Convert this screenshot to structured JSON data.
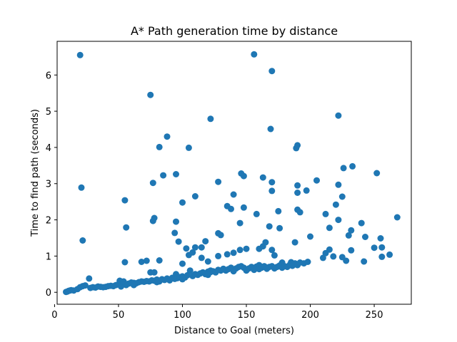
{
  "chart_data": {
    "type": "scatter",
    "title": "A* Path generation time by distance",
    "xlabel": "Distance to Goal (meters)",
    "ylabel": "Time to find path (seconds)",
    "xlim": [
      2,
      279
    ],
    "ylim": [
      -0.33,
      6.93
    ],
    "xticks": [
      0,
      50,
      100,
      150,
      200,
      250
    ],
    "yticks": [
      0,
      1,
      2,
      3,
      4,
      5,
      6
    ],
    "grid": false,
    "marker_color": "#1f77b4",
    "points": [
      [
        20,
        6.55
      ],
      [
        156,
        6.57
      ],
      [
        170,
        6.11
      ],
      [
        75,
        5.45
      ],
      [
        122,
        4.79
      ],
      [
        222,
        4.88
      ],
      [
        88,
        4.3
      ],
      [
        82,
        4.01
      ],
      [
        105,
        3.99
      ],
      [
        169,
        4.51
      ],
      [
        189,
        3.98
      ],
      [
        190,
        4.06
      ],
      [
        21,
        2.89
      ],
      [
        22,
        1.43
      ],
      [
        55,
        2.54
      ],
      [
        56,
        1.79
      ],
      [
        77,
        3.02
      ],
      [
        85,
        3.23
      ],
      [
        95,
        3.26
      ],
      [
        100,
        2.48
      ],
      [
        110,
        2.65
      ],
      [
        128,
        3.05
      ],
      [
        140,
        2.7
      ],
      [
        146,
        3.28
      ],
      [
        148,
        3.21
      ],
      [
        163,
        3.17
      ],
      [
        170,
        3.04
      ],
      [
        170,
        2.8
      ],
      [
        190,
        2.95
      ],
      [
        190,
        2.75
      ],
      [
        197,
        2.81
      ],
      [
        205,
        3.09
      ],
      [
        222,
        2.97
      ],
      [
        226,
        3.43
      ],
      [
        233,
        3.48
      ],
      [
        252,
        3.29
      ],
      [
        77,
        1.97
      ],
      [
        78,
        2.05
      ],
      [
        95,
        1.95
      ],
      [
        94,
        1.64
      ],
      [
        97,
        1.4
      ],
      [
        110,
        1.24
      ],
      [
        115,
        1.24
      ],
      [
        118,
        1.41
      ],
      [
        128,
        1.63
      ],
      [
        130,
        1.58
      ],
      [
        135,
        2.38
      ],
      [
        138,
        2.3
      ],
      [
        145,
        1.91
      ],
      [
        148,
        2.34
      ],
      [
        158,
        2.16
      ],
      [
        165,
        1.38
      ],
      [
        168,
        1.82
      ],
      [
        175,
        2.24
      ],
      [
        176,
        1.77
      ],
      [
        190,
        2.28
      ],
      [
        192,
        2.21
      ],
      [
        200,
        1.54
      ],
      [
        212,
        2.16
      ],
      [
        215,
        1.78
      ],
      [
        220,
        2.42
      ],
      [
        222,
        2.0
      ],
      [
        225,
        2.64
      ],
      [
        230,
        1.57
      ],
      [
        232,
        1.71
      ],
      [
        240,
        1.91
      ],
      [
        243,
        1.53
      ],
      [
        255,
        1.49
      ],
      [
        268,
        2.07
      ],
      [
        55,
        0.83
      ],
      [
        68,
        0.84
      ],
      [
        72,
        0.87
      ],
      [
        82,
        0.88
      ],
      [
        100,
        0.79
      ],
      [
        103,
        1.21
      ],
      [
        105,
        1.03
      ],
      [
        108,
        1.1
      ],
      [
        115,
        0.95
      ],
      [
        120,
        0.85
      ],
      [
        128,
        1.0
      ],
      [
        135,
        1.05
      ],
      [
        140,
        1.09
      ],
      [
        145,
        1.17
      ],
      [
        150,
        1.2
      ],
      [
        160,
        1.2
      ],
      [
        163,
        1.27
      ],
      [
        170,
        1.17
      ],
      [
        172,
        1.02
      ],
      [
        178,
        0.82
      ],
      [
        185,
        0.83
      ],
      [
        188,
        1.38
      ],
      [
        210,
        0.95
      ],
      [
        212,
        1.08
      ],
      [
        215,
        1.18
      ],
      [
        218,
        0.99
      ],
      [
        225,
        0.97
      ],
      [
        228,
        0.87
      ],
      [
        232,
        1.16
      ],
      [
        242,
        0.85
      ],
      [
        250,
        1.23
      ],
      [
        256,
        1.24
      ],
      [
        256,
        0.98
      ],
      [
        262,
        1.04
      ],
      [
        75,
        0.55
      ],
      [
        78,
        0.55
      ],
      [
        95,
        0.5
      ],
      [
        122,
        0.56
      ],
      [
        9,
        0.01
      ],
      [
        10,
        0.02
      ],
      [
        11,
        0.04
      ],
      [
        12,
        0.05
      ],
      [
        13,
        0.06
      ],
      [
        15,
        0.05
      ],
      [
        18,
        0.09
      ],
      [
        20,
        0.14
      ],
      [
        22,
        0.17
      ],
      [
        24,
        0.19
      ],
      [
        27,
        0.38
      ],
      [
        28,
        0.12
      ],
      [
        30,
        0.14
      ],
      [
        32,
        0.13
      ],
      [
        34,
        0.16
      ],
      [
        36,
        0.15
      ],
      [
        38,
        0.14
      ],
      [
        40,
        0.15
      ],
      [
        42,
        0.17
      ],
      [
        44,
        0.18
      ],
      [
        46,
        0.17
      ],
      [
        48,
        0.2
      ],
      [
        50,
        0.22
      ],
      [
        51,
        0.32
      ],
      [
        52,
        0.16
      ],
      [
        54,
        0.3
      ],
      [
        56,
        0.2
      ],
      [
        58,
        0.24
      ],
      [
        60,
        0.27
      ],
      [
        62,
        0.26
      ],
      [
        64,
        0.25
      ],
      [
        66,
        0.28
      ],
      [
        68,
        0.3
      ],
      [
        70,
        0.29
      ],
      [
        72,
        0.31
      ],
      [
        74,
        0.3
      ],
      [
        76,
        0.33
      ],
      [
        78,
        0.32
      ],
      [
        80,
        0.35
      ],
      [
        82,
        0.3
      ],
      [
        84,
        0.36
      ],
      [
        86,
        0.34
      ],
      [
        88,
        0.38
      ],
      [
        90,
        0.33
      ],
      [
        92,
        0.4
      ],
      [
        94,
        0.37
      ],
      [
        96,
        0.39
      ],
      [
        98,
        0.42
      ],
      [
        100,
        0.44
      ],
      [
        102,
        0.41
      ],
      [
        104,
        0.47
      ],
      [
        106,
        0.6
      ],
      [
        108,
        0.45
      ],
      [
        110,
        0.5
      ],
      [
        112,
        0.48
      ],
      [
        114,
        0.52
      ],
      [
        116,
        0.55
      ],
      [
        118,
        0.5
      ],
      [
        120,
        0.57
      ],
      [
        122,
        0.6
      ],
      [
        124,
        0.58
      ],
      [
        126,
        0.55
      ],
      [
        128,
        0.62
      ],
      [
        130,
        0.6
      ],
      [
        132,
        0.65
      ],
      [
        134,
        0.6
      ],
      [
        136,
        0.64
      ],
      [
        138,
        0.68
      ],
      [
        140,
        0.62
      ],
      [
        142,
        0.66
      ],
      [
        144,
        0.7
      ],
      [
        146,
        0.72
      ],
      [
        148,
        0.68
      ],
      [
        150,
        0.6
      ],
      [
        152,
        0.66
      ],
      [
        154,
        0.7
      ],
      [
        156,
        0.62
      ],
      [
        158,
        0.71
      ],
      [
        160,
        0.75
      ],
      [
        162,
        0.68
      ],
      [
        164,
        0.72
      ],
      [
        166,
        0.65
      ],
      [
        168,
        0.7
      ],
      [
        170,
        0.72
      ],
      [
        172,
        0.66
      ],
      [
        174,
        0.7
      ],
      [
        176,
        0.74
      ],
      [
        178,
        0.68
      ],
      [
        180,
        0.72
      ],
      [
        182,
        0.7
      ],
      [
        184,
        0.76
      ],
      [
        186,
        0.73
      ],
      [
        188,
        0.8
      ],
      [
        190,
        0.75
      ],
      [
        192,
        0.82
      ],
      [
        195,
        0.8
      ],
      [
        198,
        0.84
      ],
      [
        62,
        0.2
      ],
      [
        80,
        0.28
      ],
      [
        100,
        0.36
      ],
      [
        120,
        0.48
      ],
      [
        140,
        0.58
      ],
      [
        160,
        0.64
      ]
    ]
  }
}
